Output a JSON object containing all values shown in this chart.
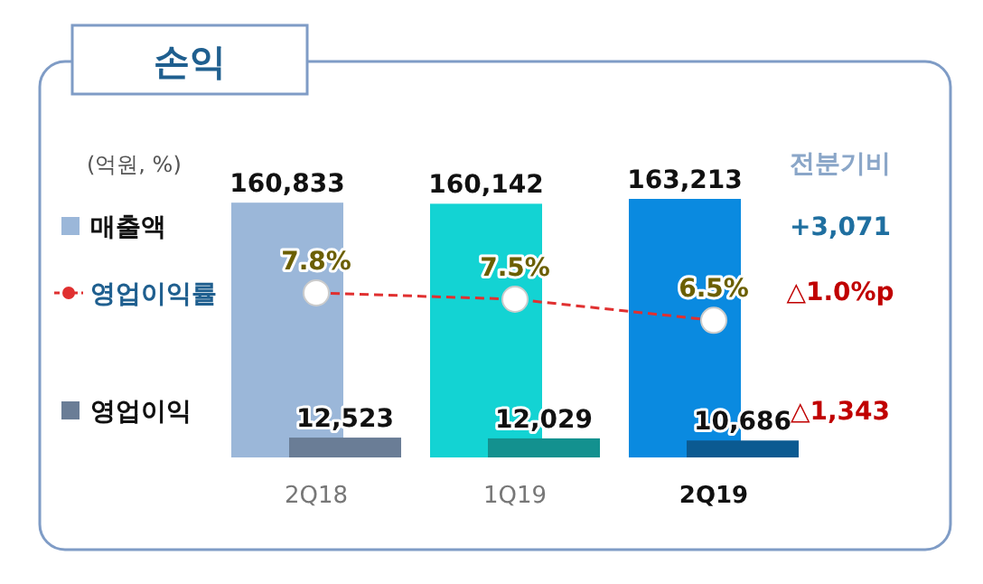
{
  "chart_data": {
    "type": "bar",
    "title": "손익",
    "legend": "left",
    "categories": [
      "2Q18",
      "1Q19",
      "2Q19"
    ],
    "series": [
      {
        "name": "매출액",
        "colors": [
          "#9bb7d9",
          "#13d3d3",
          "#0a8ae0"
        ],
        "values": [
          160833,
          160142,
          163213
        ],
        "value_labels": [
          "160,833",
          "160,142",
          "163,213"
        ]
      },
      {
        "name": "영업이익",
        "colors": [
          "#6a7d96",
          "#13918f",
          "#0b5a91"
        ],
        "values": [
          12523,
          12029,
          10686
        ],
        "value_labels": [
          "12,523",
          "12,029",
          "10,686"
        ]
      },
      {
        "name": "영업이익률",
        "type": "line",
        "axis": "y2",
        "color": "#e03030",
        "line_style": "dashed",
        "marker": "circle",
        "values": [
          7.8,
          7.5,
          6.5
        ],
        "value_labels": [
          "7.8%",
          "7.5%",
          "6.5%"
        ]
      }
    ],
    "annotations": [
      "(억원, %)",
      "전분기비",
      "+3,071",
      "△1,343",
      "△1.0%p"
    ]
  }
}
